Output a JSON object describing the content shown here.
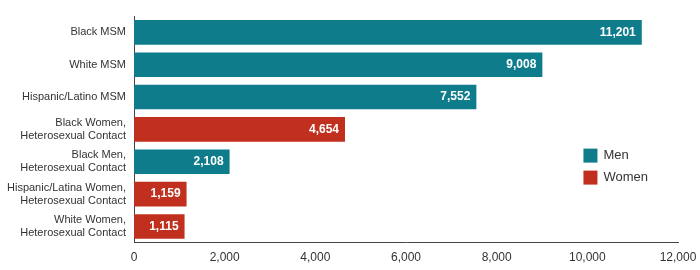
{
  "chart_data": {
    "type": "bar",
    "orientation": "horizontal",
    "categories": [
      "Black MSM",
      "White MSM",
      "Hispanic/Latino MSM",
      "Black Women, Heterosexual Contact",
      "Black Men, Heterosexual Contact",
      "Hispanic/Latina Women, Heterosexual Contact",
      "White Women, Heterosexual Contact"
    ],
    "series": [
      {
        "name": "Men",
        "color": "#0e7c8b",
        "values": [
          11201,
          9008,
          7552,
          null,
          2108,
          null,
          null
        ],
        "value_labels": [
          "11,201",
          "9,008",
          "7,552",
          null,
          "2,108",
          null,
          null
        ]
      },
      {
        "name": "Women",
        "color": "#c1301f",
        "values": [
          null,
          null,
          null,
          4654,
          null,
          1159,
          1115
        ],
        "value_labels": [
          null,
          null,
          null,
          "4,654",
          null,
          "1,159",
          "1,115"
        ]
      }
    ],
    "xlim": [
      0,
      12000
    ],
    "xticks": [
      0,
      {
        "value": 2000,
        "label": "2,000"
      },
      {
        "value": 4000,
        "label": "4,000"
      },
      {
        "value": 6000,
        "label": "6,000"
      },
      {
        "value": 8000,
        "label": "8,000"
      },
      {
        "value": 10000,
        "label": "10,000"
      },
      {
        "value": 12000,
        "label": "12,000"
      }
    ],
    "grid": false,
    "legend": "lower right",
    "data_labels": true
  }
}
